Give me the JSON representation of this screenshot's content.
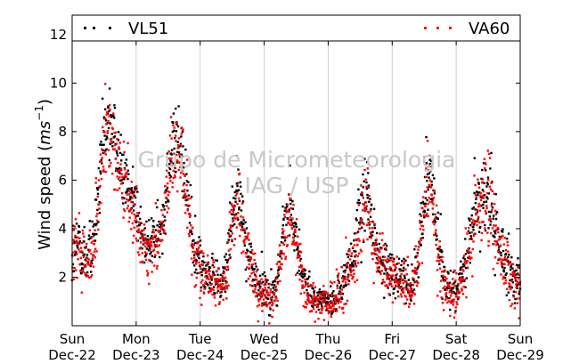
{
  "chart_data": {
    "type": "scatter",
    "title": "",
    "xlabel": "",
    "ylabel": "Wind speed (m s⁻¹)",
    "ylabel_parts": {
      "main": "Wind speed (",
      "unit1": "ms",
      "sup": "−1",
      "close": ")"
    },
    "xlim": [
      0,
      7
    ],
    "ylim": [
      0,
      12.8
    ],
    "yticks": [
      2,
      4,
      6,
      8,
      10,
      12
    ],
    "xticks": [
      {
        "x": 0,
        "day": "Sun",
        "date": "Dec-22"
      },
      {
        "x": 1,
        "day": "Mon",
        "date": "Dec-23"
      },
      {
        "x": 2,
        "day": "Tue",
        "date": "Dec-24"
      },
      {
        "x": 3,
        "day": "Wed",
        "date": "Dec-25"
      },
      {
        "x": 4,
        "day": "Thu",
        "date": "Dec-26"
      },
      {
        "x": 5,
        "day": "Fri",
        "date": "Dec-27"
      },
      {
        "x": 6,
        "day": "Sat",
        "date": "Dec-28"
      },
      {
        "x": 7,
        "day": "Sun",
        "date": "Dec-29"
      }
    ],
    "grid": "vertical",
    "legend_placement": "top",
    "series": [
      {
        "name": "VL51",
        "color": "#000000",
        "profile": [
          [
            0.0,
            2.9,
            1.1
          ],
          [
            0.1,
            3.3,
            1.1
          ],
          [
            0.2,
            2.8,
            1.0
          ],
          [
            0.3,
            3.0,
            1.1
          ],
          [
            0.4,
            5.0,
            1.3
          ],
          [
            0.5,
            8.0,
            1.3
          ],
          [
            0.6,
            8.6,
            1.3
          ],
          [
            0.7,
            7.2,
            1.2
          ],
          [
            0.8,
            6.4,
            1.1
          ],
          [
            0.9,
            5.8,
            1.0
          ],
          [
            1.0,
            4.6,
            1.0
          ],
          [
            1.1,
            3.6,
            0.9
          ],
          [
            1.2,
            3.3,
            0.8
          ],
          [
            1.3,
            3.6,
            0.8
          ],
          [
            1.4,
            4.2,
            1.0
          ],
          [
            1.5,
            6.2,
            1.2
          ],
          [
            1.6,
            7.6,
            1.2
          ],
          [
            1.7,
            7.3,
            1.3
          ],
          [
            1.8,
            5.6,
            1.3
          ],
          [
            1.9,
            3.0,
            0.9
          ],
          [
            2.0,
            2.6,
            0.8
          ],
          [
            2.1,
            2.3,
            0.8
          ],
          [
            2.2,
            2.0,
            0.8
          ],
          [
            2.3,
            1.7,
            0.7
          ],
          [
            2.4,
            2.2,
            0.9
          ],
          [
            2.5,
            4.8,
            1.2
          ],
          [
            2.6,
            5.4,
            1.2
          ],
          [
            2.7,
            3.6,
            1.1
          ],
          [
            2.8,
            2.4,
            0.8
          ],
          [
            2.9,
            1.7,
            0.7
          ],
          [
            3.0,
            1.5,
            0.7
          ],
          [
            3.1,
            1.2,
            0.6
          ],
          [
            3.2,
            1.7,
            0.7
          ],
          [
            3.3,
            4.0,
            1.0
          ],
          [
            3.4,
            5.0,
            1.1
          ],
          [
            3.5,
            3.6,
            1.0
          ],
          [
            3.6,
            2.0,
            0.8
          ],
          [
            3.7,
            1.4,
            0.6
          ],
          [
            3.8,
            1.0,
            0.5
          ],
          [
            3.9,
            1.2,
            0.6
          ],
          [
            4.0,
            1.0,
            0.5
          ],
          [
            4.1,
            1.1,
            0.5
          ],
          [
            4.2,
            1.7,
            0.7
          ],
          [
            4.3,
            2.3,
            0.8
          ],
          [
            4.4,
            2.8,
            1.0
          ],
          [
            4.5,
            4.4,
            1.3
          ],
          [
            4.6,
            6.0,
            1.4
          ],
          [
            4.7,
            3.6,
            1.1
          ],
          [
            4.8,
            2.8,
            0.9
          ],
          [
            4.9,
            2.6,
            0.9
          ],
          [
            5.0,
            2.3,
            0.8
          ],
          [
            5.1,
            2.1,
            0.7
          ],
          [
            5.2,
            1.9,
            0.7
          ],
          [
            5.3,
            1.6,
            0.7
          ],
          [
            5.4,
            2.6,
            0.9
          ],
          [
            5.5,
            5.4,
            1.3
          ],
          [
            5.6,
            6.6,
            1.3
          ],
          [
            5.7,
            3.8,
            1.2
          ],
          [
            5.8,
            2.0,
            0.8
          ],
          [
            5.9,
            1.6,
            0.7
          ],
          [
            6.0,
            1.4,
            0.6
          ],
          [
            6.1,
            2.0,
            0.8
          ],
          [
            6.2,
            3.4,
            1.0
          ],
          [
            6.3,
            4.8,
            1.2
          ],
          [
            6.4,
            5.2,
            1.4
          ],
          [
            6.5,
            5.4,
            1.5
          ],
          [
            6.6,
            4.2,
            1.3
          ],
          [
            6.7,
            3.2,
            1.1
          ],
          [
            6.8,
            2.4,
            0.9
          ],
          [
            6.9,
            1.6,
            0.7
          ],
          [
            7.0,
            1.8,
            0.7
          ]
        ]
      },
      {
        "name": "VA60",
        "color": "#ff0000",
        "profile": [
          [
            0.0,
            2.7,
            1.2
          ],
          [
            0.1,
            3.0,
            1.2
          ],
          [
            0.2,
            2.5,
            1.1
          ],
          [
            0.3,
            2.7,
            1.2
          ],
          [
            0.4,
            4.6,
            1.4
          ],
          [
            0.5,
            7.4,
            1.5
          ],
          [
            0.6,
            7.8,
            1.5
          ],
          [
            0.7,
            6.6,
            1.3
          ],
          [
            0.8,
            5.8,
            1.2
          ],
          [
            0.9,
            5.2,
            1.1
          ],
          [
            1.0,
            4.2,
            1.1
          ],
          [
            1.1,
            3.3,
            1.0
          ],
          [
            1.2,
            3.0,
            0.9
          ],
          [
            1.3,
            3.2,
            0.9
          ],
          [
            1.4,
            3.9,
            1.1
          ],
          [
            1.5,
            5.8,
            1.3
          ],
          [
            1.6,
            7.2,
            1.4
          ],
          [
            1.7,
            7.0,
            1.4
          ],
          [
            1.8,
            5.0,
            1.4
          ],
          [
            1.9,
            2.7,
            1.0
          ],
          [
            2.0,
            2.4,
            0.9
          ],
          [
            2.1,
            2.1,
            0.9
          ],
          [
            2.2,
            1.8,
            0.8
          ],
          [
            2.3,
            1.5,
            0.8
          ],
          [
            2.4,
            2.0,
            1.0
          ],
          [
            2.5,
            4.4,
            1.3
          ],
          [
            2.6,
            5.0,
            1.3
          ],
          [
            2.7,
            3.2,
            1.2
          ],
          [
            2.8,
            2.1,
            0.9
          ],
          [
            2.9,
            1.5,
            0.8
          ],
          [
            3.0,
            1.3,
            0.7
          ],
          [
            3.1,
            1.0,
            0.6
          ],
          [
            3.2,
            1.5,
            0.8
          ],
          [
            3.3,
            3.6,
            1.1
          ],
          [
            3.4,
            4.6,
            1.2
          ],
          [
            3.5,
            3.2,
            1.1
          ],
          [
            3.6,
            1.8,
            0.8
          ],
          [
            3.7,
            1.2,
            0.7
          ],
          [
            3.8,
            0.9,
            0.5
          ],
          [
            3.9,
            1.0,
            0.6
          ],
          [
            4.0,
            0.9,
            0.5
          ],
          [
            4.1,
            1.0,
            0.6
          ],
          [
            4.2,
            1.5,
            0.8
          ],
          [
            4.3,
            2.1,
            0.9
          ],
          [
            4.4,
            2.6,
            1.1
          ],
          [
            4.5,
            4.0,
            1.4
          ],
          [
            4.6,
            5.6,
            1.5
          ],
          [
            4.7,
            3.2,
            1.2
          ],
          [
            4.8,
            2.6,
            1.0
          ],
          [
            4.9,
            2.4,
            1.0
          ],
          [
            5.0,
            2.1,
            0.9
          ],
          [
            5.1,
            1.9,
            0.8
          ],
          [
            5.2,
            1.7,
            0.8
          ],
          [
            5.3,
            1.4,
            0.7
          ],
          [
            5.4,
            2.4,
            1.0
          ],
          [
            5.5,
            5.0,
            1.4
          ],
          [
            5.6,
            6.2,
            1.4
          ],
          [
            5.7,
            3.4,
            1.3
          ],
          [
            5.8,
            1.8,
            0.9
          ],
          [
            5.9,
            1.4,
            0.8
          ],
          [
            6.0,
            1.2,
            0.7
          ],
          [
            6.1,
            1.8,
            0.9
          ],
          [
            6.2,
            3.2,
            1.1
          ],
          [
            6.3,
            4.6,
            1.4
          ],
          [
            6.4,
            5.4,
            1.6
          ],
          [
            6.5,
            5.2,
            1.7
          ],
          [
            6.6,
            4.0,
            1.4
          ],
          [
            6.7,
            3.0,
            1.2
          ],
          [
            6.8,
            2.2,
            1.0
          ],
          [
            6.9,
            1.5,
            0.8
          ],
          [
            7.0,
            1.6,
            0.8
          ]
        ]
      }
    ],
    "watermark": [
      "Grupo de Micrometeorologia",
      "IAG / USP"
    ]
  }
}
